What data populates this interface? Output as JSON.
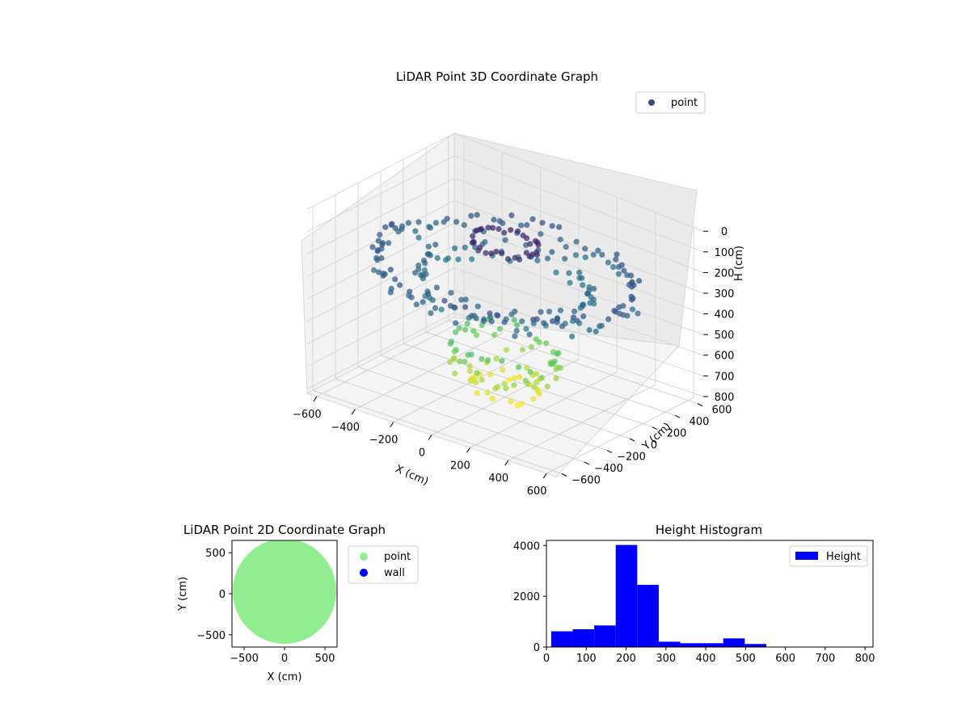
{
  "chart_data": [
    {
      "type": "scatter",
      "title": "LiDAR Point 3D Coordinate Graph",
      "projection": "3d",
      "xlabel": "X (cm)",
      "ylabel": "Y (cm)",
      "zlabel": "H (cm)",
      "xlim": [
        -650,
        650
      ],
      "ylim": [
        -650,
        650
      ],
      "zlim": [
        820,
        0
      ],
      "z_axis_inverted": true,
      "x_ticks": [
        "−600",
        "−400",
        "−200",
        "0",
        "200",
        "400",
        "600"
      ],
      "y_ticks": [
        "−600",
        "−400",
        "−200",
        "0",
        "200",
        "400",
        "600"
      ],
      "z_ticks": [
        "0",
        "100",
        "200",
        "300",
        "400",
        "500",
        "600",
        "700",
        "800"
      ],
      "colormap": "viridis",
      "legend_position": "top-right",
      "grid": true,
      "series": [
        {
          "name": "point",
          "color": "#3b4a8a",
          "description_of_structure": "outer ring radius ~600 at H 200-300; inner dense disc radius ~350 at H 250-350; bowl bottom radius ~200 at H 600-800; top cap radius ~150 at H 100",
          "rings": [
            {
              "radius": 600,
              "h_min": 200,
              "h_max": 300
            },
            {
              "radius": 400,
              "h_min": 250,
              "h_max": 350
            },
            {
              "radius": 250,
              "h_min": 550,
              "h_max": 700
            },
            {
              "radius": 160,
              "h_min": 700,
              "h_max": 800
            },
            {
              "radius": 150,
              "h_min": 90,
              "h_max": 130
            }
          ]
        }
      ]
    },
    {
      "type": "scatter",
      "title": "LiDAR Point 2D Coordinate Graph",
      "xlabel": "X (cm)",
      "ylabel": "Y (cm)",
      "xlim": [
        -650,
        650
      ],
      "ylim": [
        -650,
        650
      ],
      "x_ticks": [
        "−500",
        "0",
        "500"
      ],
      "y_ticks": [
        "−500",
        "0",
        "500"
      ],
      "legend_position": "outside-right",
      "series": [
        {
          "name": "point",
          "color": "#90ee90",
          "shape": "disc",
          "radius": 640
        },
        {
          "name": "wall",
          "color": "#0000ff",
          "values": []
        }
      ]
    },
    {
      "type": "bar",
      "title": "Height Histogram",
      "legend_position": "top-right",
      "xlim": [
        0,
        820
      ],
      "ylim": [
        0,
        4200
      ],
      "x_ticks": [
        "0",
        "100",
        "200",
        "300",
        "400",
        "500",
        "600",
        "700",
        "800"
      ],
      "y_ticks": [
        "0",
        "2000",
        "4000"
      ],
      "series": [
        {
          "name": "Height",
          "color": "#0000ff",
          "bin_edges": [
            12,
            66,
            120,
            174,
            228,
            282,
            336,
            390,
            444,
            498,
            552,
            606,
            660,
            714,
            768
          ],
          "counts": [
            620,
            700,
            850,
            4020,
            2450,
            210,
            150,
            150,
            340,
            120,
            10,
            5,
            5,
            5
          ]
        }
      ]
    }
  ]
}
